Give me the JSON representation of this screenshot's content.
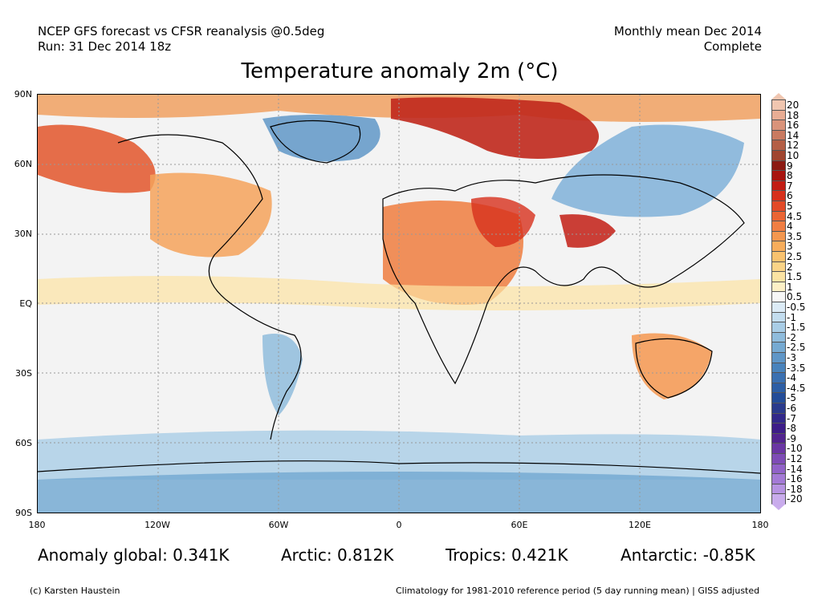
{
  "header": {
    "line1_left": "NCEP GFS forecast vs CFSR reanalysis @0.5deg",
    "line2_left": "Run: 31 Dec 2014 18z",
    "line1_right": "Monthly mean Dec 2014",
    "line2_right": "Complete"
  },
  "title": "Temperature anomaly 2m (°C)",
  "axes": {
    "lat_labels": [
      "90N",
      "60N",
      "30N",
      "EQ",
      "30S",
      "60S",
      "90S"
    ],
    "lon_labels": [
      "180",
      "120W",
      "60W",
      "0",
      "60E",
      "120E",
      "180"
    ]
  },
  "colorbar": {
    "labels": [
      "20",
      "18",
      "16",
      "14",
      "12",
      "10",
      "9",
      "8",
      "7",
      "6",
      "5",
      "4.5",
      "4",
      "3.5",
      "3",
      "2.5",
      "2",
      "1.5",
      "1",
      "0.5",
      "-0.5",
      "-1",
      "-1.5",
      "-2",
      "-2.5",
      "-3",
      "-3.5",
      "-4",
      "-4.5",
      "-5",
      "-6",
      "-7",
      "-8",
      "-9",
      "-10",
      "-12",
      "-14",
      "-16",
      "-18",
      "-20"
    ],
    "colors": [
      "#f0c6b0",
      "#e8ad94",
      "#d9937a",
      "#c97a60",
      "#b45f46",
      "#a0452f",
      "#8b1a12",
      "#a8140f",
      "#c21d14",
      "#d7301c",
      "#e24a28",
      "#ea6534",
      "#f07e43",
      "#f4974f",
      "#f7ad5c",
      "#f9c26f",
      "#fbd487",
      "#fce3a3",
      "#fdf0c6",
      "#f7f7f7",
      "#dcebf6",
      "#c3ddef",
      "#a9cde6",
      "#8fbcdc",
      "#76aad2",
      "#5f96c7",
      "#4983bc",
      "#3a70b1",
      "#2d5ea5",
      "#234c98",
      "#2a3a8c",
      "#32288a",
      "#3d1c88",
      "#52238f",
      "#6a36a3",
      "#7e4cb6",
      "#9162c8",
      "#a47ad6",
      "#b793e2",
      "#c9acec"
    ]
  },
  "stats": {
    "global": "Anomaly global: 0.341K",
    "arctic": "Arctic: 0.812K",
    "tropics": "Tropics: 0.421K",
    "antarctic": "Antarctic: -0.85K"
  },
  "footer": {
    "left": "(c) Karsten Haustein",
    "right": "Climatology for 1981-2010 reference period (5 day running mean) | GISS adjusted"
  }
}
